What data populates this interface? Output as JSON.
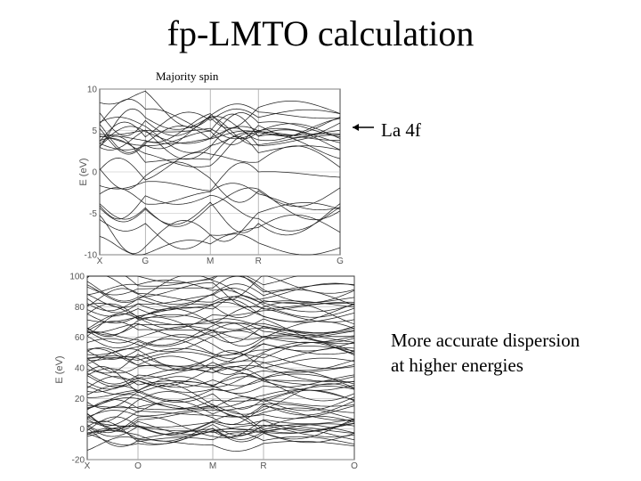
{
  "slide": {
    "title": "fp-LMTO calculation",
    "subtitle": "Majority spin",
    "annotation_la4f": "La 4f",
    "annotation_accuracy_line1": "More accurate dispersion",
    "annotation_accuracy_line2": "at higher energies"
  },
  "chart_data": [
    {
      "type": "line",
      "name": "top-band-structure",
      "ylabel": "E (eV)",
      "ylim": [
        -10,
        10
      ],
      "yticks": [
        "10",
        "5",
        "0",
        "-5",
        "-10"
      ],
      "k_points": [
        "X",
        "G",
        "M",
        "R",
        "G"
      ],
      "grid": true,
      "annotation": "La 4f band near 5 eV"
    },
    {
      "type": "line",
      "name": "bottom-band-structure",
      "ylabel": "E (eV)",
      "ylim": [
        -20,
        100
      ],
      "yticks": [
        "100",
        "80",
        "60",
        "40",
        "20",
        "0",
        "-20"
      ],
      "k_points": [
        "X",
        "O",
        "M",
        "R",
        "O"
      ],
      "grid": true
    }
  ]
}
